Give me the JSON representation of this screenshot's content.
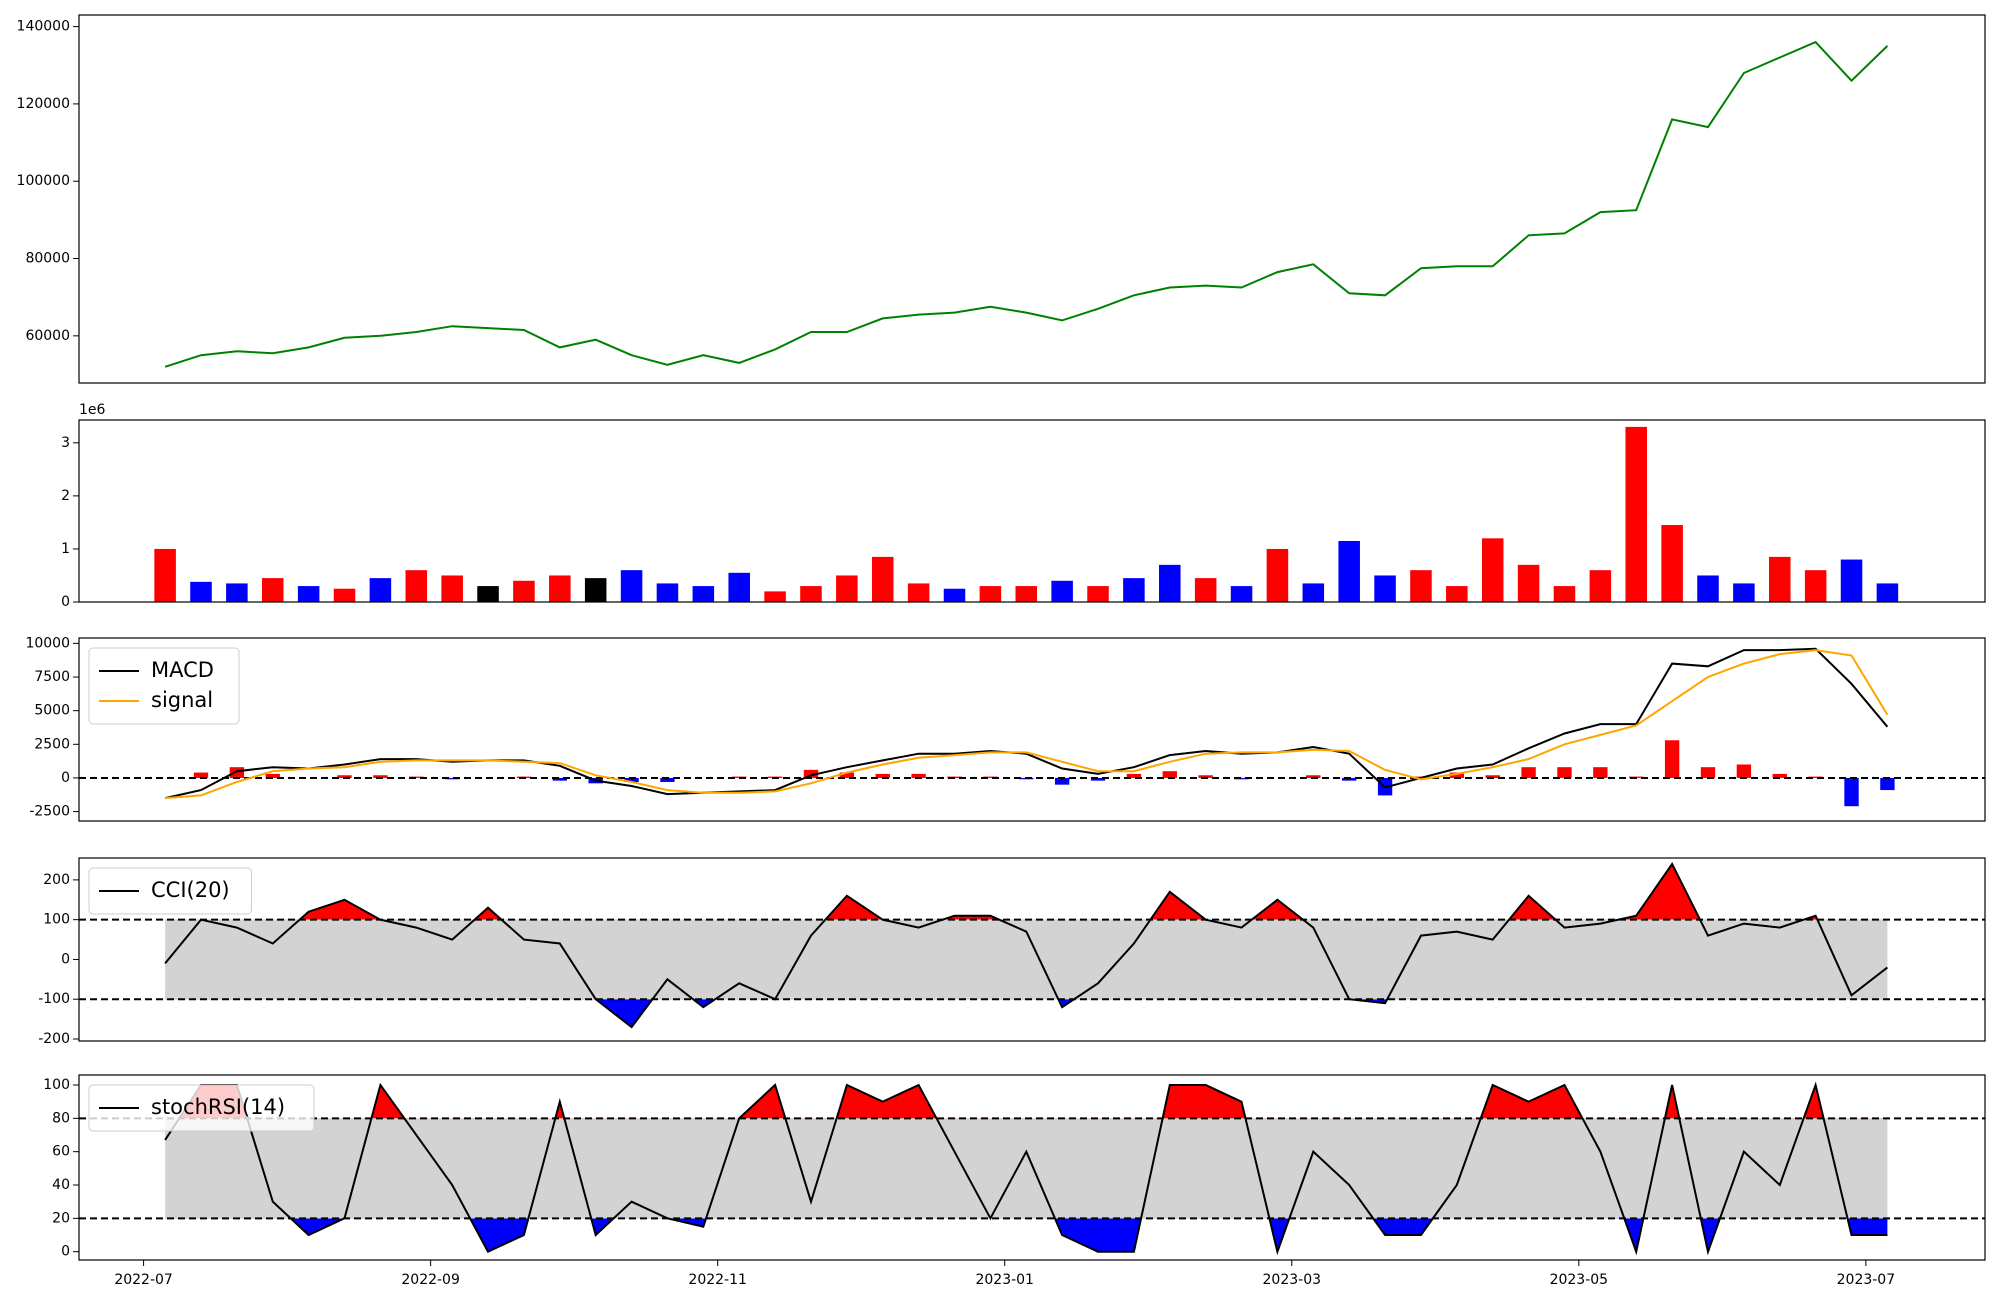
{
  "chart_data": [
    {
      "type": "line",
      "xlim": [
        -0.45,
        12.83
      ],
      "ylim": [
        47800,
        143000
      ],
      "yticks": [
        60000,
        80000,
        100000,
        120000,
        140000
      ],
      "x": [
        0.15,
        0.4,
        0.65,
        0.9,
        1.15,
        1.4,
        1.65,
        1.9,
        2.15,
        2.4,
        2.65,
        2.9,
        3.15,
        3.4,
        3.65,
        3.9,
        4.15,
        4.4,
        4.65,
        4.9,
        5.15,
        5.4,
        5.65,
        5.9,
        6.15,
        6.4,
        6.65,
        6.9,
        7.15,
        7.4,
        7.65,
        7.9,
        8.15,
        8.4,
        8.65,
        8.9,
        9.15,
        9.4,
        9.65,
        9.9,
        10.15,
        10.4,
        10.65,
        10.9,
        11.15,
        11.4,
        11.65,
        11.9,
        12.15
      ],
      "series": [
        {
          "color": "green",
          "values": [
            52000,
            55000,
            56000,
            55500,
            57000,
            59500,
            60000,
            61000,
            62500,
            62000,
            61500,
            57000,
            59000,
            55000,
            52500,
            55000,
            53000,
            56500,
            61000,
            61000,
            64500,
            65500,
            66000,
            67500,
            66000,
            64000,
            67000,
            70500,
            72500,
            73000,
            72500,
            76500,
            78500,
            71000,
            70500,
            77500,
            78000,
            78000,
            86000,
            86500,
            92000,
            92500,
            116000,
            114000,
            128000,
            132000,
            136000,
            126000,
            135000
          ]
        }
      ]
    },
    {
      "type": "bar",
      "xlim": [
        -0.45,
        12.83
      ],
      "ylim": [
        0,
        3.43
      ],
      "yticks": [
        0,
        1,
        2,
        3
      ],
      "offset_text": "1e6",
      "x": [
        0.15,
        0.4,
        0.65,
        0.9,
        1.15,
        1.4,
        1.65,
        1.9,
        2.15,
        2.4,
        2.65,
        2.9,
        3.15,
        3.4,
        3.65,
        3.9,
        4.15,
        4.4,
        4.65,
        4.9,
        5.15,
        5.4,
        5.65,
        5.9,
        6.15,
        6.4,
        6.65,
        6.9,
        7.15,
        7.4,
        7.65,
        7.9,
        8.15,
        8.4,
        8.65,
        8.9,
        9.15,
        9.4,
        9.65,
        9.9,
        10.15,
        10.4,
        10.65,
        10.9,
        11.15,
        11.4,
        11.65,
        11.9,
        12.15
      ],
      "values": [
        1.0,
        0.38,
        0.35,
        0.45,
        0.3,
        0.25,
        0.45,
        0.6,
        0.5,
        0.3,
        0.4,
        0.5,
        0.45,
        0.6,
        0.35,
        0.3,
        0.55,
        0.2,
        0.3,
        0.5,
        0.85,
        0.35,
        0.25,
        0.3,
        0.3,
        0.4,
        0.3,
        0.45,
        0.7,
        0.45,
        0.3,
        1.0,
        0.35,
        1.15,
        0.5,
        0.6,
        0.3,
        1.2,
        0.7,
        0.3,
        0.6,
        3.3,
        1.45,
        0.5,
        0.35,
        0.85,
        0.6,
        0.8,
        0.35
      ],
      "colors": [
        "red",
        "blue",
        "blue",
        "red",
        "blue",
        "red",
        "blue",
        "red",
        "red",
        "black",
        "red",
        "red",
        "black",
        "blue",
        "blue",
        "blue",
        "blue",
        "red",
        "red",
        "red",
        "red",
        "red",
        "blue",
        "red",
        "red",
        "blue",
        "red",
        "blue",
        "blue",
        "red",
        "blue",
        "red",
        "blue",
        "blue",
        "blue",
        "red",
        "red",
        "red",
        "red",
        "red",
        "red",
        "red",
        "red",
        "blue",
        "blue",
        "red",
        "red",
        "blue",
        "blue"
      ]
    },
    {
      "type": "macd",
      "xlim": [
        -0.45,
        12.83
      ],
      "ylim": [
        -3200,
        10400
      ],
      "yticks": [
        -2500,
        0,
        2500,
        5000,
        7500,
        10000
      ],
      "hlines": [
        0
      ],
      "x": [
        0.15,
        0.4,
        0.65,
        0.9,
        1.15,
        1.4,
        1.65,
        1.9,
        2.15,
        2.4,
        2.65,
        2.9,
        3.15,
        3.4,
        3.65,
        3.9,
        4.15,
        4.4,
        4.65,
        4.9,
        5.15,
        5.4,
        5.65,
        5.9,
        6.15,
        6.4,
        6.65,
        6.9,
        7.15,
        7.4,
        7.65,
        7.9,
        8.15,
        8.4,
        8.65,
        8.9,
        9.15,
        9.4,
        9.65,
        9.9,
        10.15,
        10.4,
        10.65,
        10.9,
        11.15,
        11.4,
        11.65,
        11.9,
        12.15
      ],
      "series": [
        {
          "name": "MACD",
          "color": "black",
          "values": [
            -1500,
            -900,
            500,
            800,
            700,
            1000,
            1400,
            1400,
            1200,
            1300,
            1300,
            900,
            -200,
            -600,
            -1200,
            -1100,
            -1000,
            -900,
            200,
            800,
            1300,
            1800,
            1800,
            2000,
            1800,
            700,
            300,
            800,
            1700,
            2000,
            1800,
            1900,
            2300,
            1800,
            -700,
            0,
            700,
            1000,
            2200,
            3300,
            4000,
            4000,
            8500,
            8300,
            9500,
            9500,
            9600,
            7000,
            3800
          ]
        },
        {
          "name": "signal",
          "color": "orange",
          "values": [
            -1500,
            -1300,
            -300,
            500,
            700,
            800,
            1200,
            1300,
            1300,
            1300,
            1200,
            1100,
            200,
            -300,
            -900,
            -1100,
            -1100,
            -1000,
            -400,
            400,
            1000,
            1500,
            1700,
            1900,
            1900,
            1200,
            500,
            500,
            1200,
            1800,
            1900,
            1900,
            2100,
            2000,
            600,
            -100,
            300,
            800,
            1400,
            2500,
            3200,
            3900,
            5700,
            7500,
            8500,
            9200,
            9500,
            9100,
            4700
          ]
        }
      ],
      "histogram": {
        "pos_color": "red",
        "neg_color": "blue",
        "values": [
          0,
          400,
          800,
          300,
          0,
          200,
          200,
          100,
          -100,
          0,
          100,
          -200,
          -400,
          -300,
          -300,
          0,
          100,
          100,
          600,
          400,
          300,
          300,
          100,
          100,
          -100,
          -500,
          -200,
          300,
          500,
          200,
          -100,
          0,
          200,
          -200,
          -1300,
          100,
          400,
          200,
          800,
          800,
          800,
          100,
          2800,
          800,
          1000,
          300,
          100,
          -2100,
          -900
        ]
      }
    },
    {
      "type": "oscillator",
      "xlim": [
        -0.45,
        12.83
      ],
      "ylim": [
        -205,
        255
      ],
      "yticks": [
        -200,
        -100,
        0,
        100,
        200
      ],
      "hlines": [
        100,
        -100
      ],
      "band_color": "lightgray",
      "high_color": "red",
      "low_color": "blue",
      "x": [
        0.15,
        0.4,
        0.65,
        0.9,
        1.15,
        1.4,
        1.65,
        1.9,
        2.15,
        2.4,
        2.65,
        2.9,
        3.15,
        3.4,
        3.65,
        3.9,
        4.15,
        4.4,
        4.65,
        4.9,
        5.15,
        5.4,
        5.65,
        5.9,
        6.15,
        6.4,
        6.65,
        6.9,
        7.15,
        7.4,
        7.65,
        7.9,
        8.15,
        8.4,
        8.65,
        8.9,
        9.15,
        9.4,
        9.65,
        9.9,
        10.15,
        10.4,
        10.65,
        10.9,
        11.15,
        11.4,
        11.65,
        11.9,
        12.15
      ],
      "series": [
        {
          "name": "CCI(20)",
          "color": "black",
          "values": [
            -10,
            100,
            80,
            40,
            120,
            150,
            100,
            80,
            50,
            130,
            50,
            40,
            -100,
            -170,
            -50,
            -120,
            -60,
            -100,
            60,
            160,
            100,
            80,
            110,
            110,
            70,
            -120,
            -60,
            40,
            170,
            100,
            80,
            150,
            80,
            -100,
            -110,
            60,
            70,
            50,
            160,
            80,
            90,
            110,
            240,
            60,
            90,
            80,
            110,
            -90,
            -20
          ]
        }
      ]
    },
    {
      "type": "oscillator",
      "xlim": [
        -0.45,
        12.83
      ],
      "ylim": [
        -5,
        106
      ],
      "yticks": [
        0,
        20,
        40,
        60,
        80,
        100
      ],
      "hlines": [
        80,
        20
      ],
      "band_color": "lightgray",
      "high_color": "red",
      "low_color": "blue",
      "xticks": [
        {
          "value": 0,
          "label": "2022-07"
        },
        {
          "value": 2,
          "label": "2022-09"
        },
        {
          "value": 4,
          "label": "2022-11"
        },
        {
          "value": 6,
          "label": "2023-01"
        },
        {
          "value": 8,
          "label": "2023-03"
        },
        {
          "value": 10,
          "label": "2023-05"
        },
        {
          "value": 12,
          "label": "2023-07"
        }
      ],
      "x": [
        0.15,
        0.4,
        0.65,
        0.9,
        1.15,
        1.4,
        1.65,
        1.9,
        2.15,
        2.4,
        2.65,
        2.9,
        3.15,
        3.4,
        3.65,
        3.9,
        4.15,
        4.4,
        4.65,
        4.9,
        5.15,
        5.4,
        5.65,
        5.9,
        6.15,
        6.4,
        6.65,
        6.9,
        7.15,
        7.4,
        7.65,
        7.9,
        8.15,
        8.4,
        8.65,
        8.9,
        9.15,
        9.4,
        9.65,
        9.9,
        10.15,
        10.4,
        10.65,
        10.9,
        11.15,
        11.4,
        11.65,
        11.9,
        12.15
      ],
      "series": [
        {
          "name": "stochRSI(14)",
          "color": "black",
          "values": [
            67,
            100,
            100,
            30,
            10,
            20,
            100,
            70,
            40,
            0,
            10,
            90,
            10,
            30,
            20,
            15,
            80,
            100,
            30,
            100,
            90,
            100,
            60,
            20,
            60,
            10,
            0,
            0,
            100,
            100,
            90,
            0,
            60,
            40,
            10,
            10,
            40,
            100,
            90,
            100,
            60,
            0,
            100,
            0,
            60,
            40,
            100,
            10,
            10
          ]
        }
      ]
    }
  ]
}
